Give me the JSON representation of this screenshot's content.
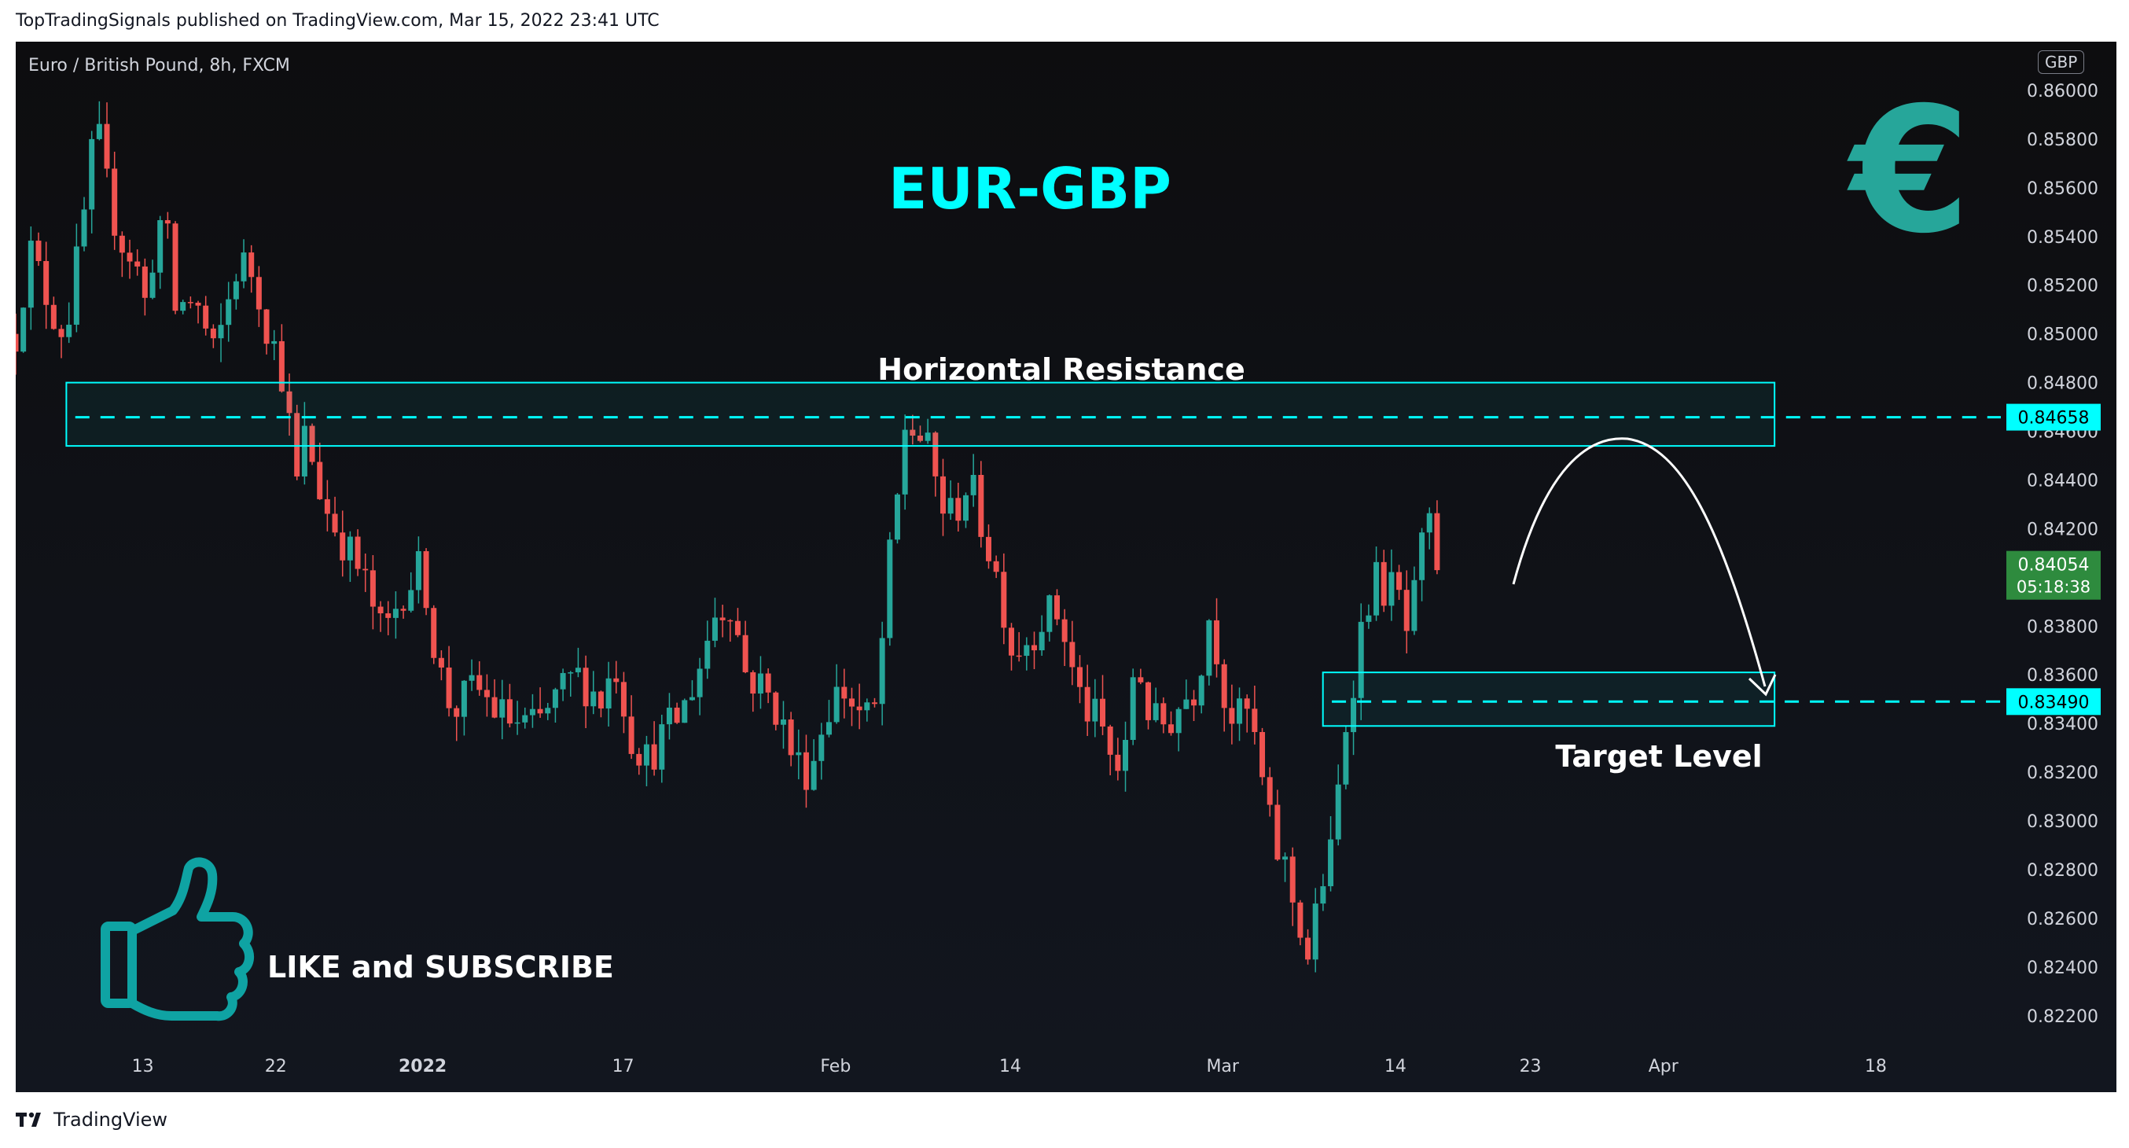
{
  "header": {
    "published_text": "TopTradingSignals published on TradingView.com, Mar 15, 2022 23:41 UTC"
  },
  "chart_header": {
    "symbol_title": "Euro / British Pound, 8h, FXCM",
    "currency": "GBP"
  },
  "footer": {
    "brand": "TradingView"
  },
  "colors": {
    "bg": "#0d0d0f",
    "up": "#26a69a",
    "down": "#ef5350",
    "accent": "#00ffff",
    "text": "#d1d4dc",
    "price_badge": "#26a69a"
  },
  "chart_data": {
    "type": "candlestick",
    "title": "EUR-GBP",
    "ylim": [
      0.8208,
      0.862
    ],
    "y_ticks": [
      0.86,
      0.858,
      0.856,
      0.854,
      0.852,
      0.85,
      0.848,
      0.846,
      0.844,
      0.842,
      0.838,
      0.836,
      0.834,
      0.832,
      0.83,
      0.828,
      0.826,
      0.824,
      0.822
    ],
    "x_ticks": [
      {
        "label": "13",
        "pos": 0.064
      },
      {
        "label": "22",
        "pos": 0.131
      },
      {
        "label": "2022",
        "pos": 0.205
      },
      {
        "label": "17",
        "pos": 0.306
      },
      {
        "label": "Feb",
        "pos": 0.413
      },
      {
        "label": "14",
        "pos": 0.501
      },
      {
        "label": "Mar",
        "pos": 0.608
      },
      {
        "label": "14",
        "pos": 0.695
      },
      {
        "label": "23",
        "pos": 0.763
      },
      {
        "label": "Apr",
        "pos": 0.83
      },
      {
        "label": "18",
        "pos": 0.937
      }
    ],
    "price_path": [
      [
        0,
        0.85
      ],
      [
        0.007,
        0.8535
      ],
      [
        0.018,
        0.851
      ],
      [
        0.025,
        0.85
      ],
      [
        0.033,
        0.854
      ],
      [
        0.038,
        0.857
      ],
      [
        0.04,
        0.8588
      ],
      [
        0.046,
        0.856
      ],
      [
        0.052,
        0.854
      ],
      [
        0.06,
        0.853
      ],
      [
        0.066,
        0.851
      ],
      [
        0.07,
        0.854
      ],
      [
        0.075,
        0.855
      ],
      [
        0.08,
        0.851
      ],
      [
        0.09,
        0.8515
      ],
      [
        0.1,
        0.849
      ],
      [
        0.106,
        0.851
      ],
      [
        0.112,
        0.853
      ],
      [
        0.12,
        0.8525
      ],
      [
        0.126,
        0.8505
      ],
      [
        0.132,
        0.849
      ],
      [
        0.137,
        0.8475
      ],
      [
        0.14,
        0.843
      ],
      [
        0.146,
        0.846
      ],
      [
        0.155,
        0.843
      ],
      [
        0.165,
        0.8415
      ],
      [
        0.175,
        0.84
      ],
      [
        0.185,
        0.8375
      ],
      [
        0.195,
        0.8395
      ],
      [
        0.205,
        0.8405
      ],
      [
        0.212,
        0.8365
      ],
      [
        0.22,
        0.8345
      ],
      [
        0.232,
        0.8355
      ],
      [
        0.242,
        0.8345
      ],
      [
        0.252,
        0.834
      ],
      [
        0.262,
        0.8338
      ],
      [
        0.272,
        0.835
      ],
      [
        0.282,
        0.836
      ],
      [
        0.295,
        0.835
      ],
      [
        0.302,
        0.8365
      ],
      [
        0.31,
        0.8335
      ],
      [
        0.318,
        0.8325
      ],
      [
        0.326,
        0.8335
      ],
      [
        0.336,
        0.8345
      ],
      [
        0.345,
        0.8365
      ],
      [
        0.352,
        0.8385
      ],
      [
        0.36,
        0.839
      ],
      [
        0.368,
        0.836
      ],
      [
        0.376,
        0.8355
      ],
      [
        0.384,
        0.8345
      ],
      [
        0.392,
        0.8325
      ],
      [
        0.4,
        0.832
      ],
      [
        0.408,
        0.8345
      ],
      [
        0.416,
        0.8355
      ],
      [
        0.424,
        0.8345
      ],
      [
        0.432,
        0.834
      ],
      [
        0.436,
        0.837
      ],
      [
        0.44,
        0.8405
      ],
      [
        0.444,
        0.843
      ],
      [
        0.448,
        0.8462
      ],
      [
        0.453,
        0.846
      ],
      [
        0.458,
        0.8455
      ],
      [
        0.462,
        0.8445
      ],
      [
        0.466,
        0.843
      ],
      [
        0.472,
        0.8425
      ],
      [
        0.48,
        0.844
      ],
      [
        0.488,
        0.8418
      ],
      [
        0.496,
        0.8395
      ],
      [
        0.502,
        0.837
      ],
      [
        0.51,
        0.8375
      ],
      [
        0.518,
        0.8385
      ],
      [
        0.526,
        0.8385
      ],
      [
        0.534,
        0.8355
      ],
      [
        0.54,
        0.8345
      ],
      [
        0.546,
        0.834
      ],
      [
        0.552,
        0.8325
      ],
      [
        0.558,
        0.8318
      ],
      [
        0.564,
        0.837
      ],
      [
        0.572,
        0.834
      ],
      [
        0.58,
        0.834
      ],
      [
        0.588,
        0.835
      ],
      [
        0.594,
        0.8355
      ],
      [
        0.598,
        0.837
      ],
      [
        0.602,
        0.8388
      ],
      [
        0.608,
        0.8355
      ],
      [
        0.614,
        0.834
      ],
      [
        0.62,
        0.8345
      ],
      [
        0.625,
        0.833
      ],
      [
        0.63,
        0.8305
      ],
      [
        0.634,
        0.829
      ],
      [
        0.64,
        0.828
      ],
      [
        0.644,
        0.8265
      ],
      [
        0.648,
        0.8255
      ],
      [
        0.652,
        0.824
      ],
      [
        0.656,
        0.827
      ],
      [
        0.66,
        0.828
      ],
      [
        0.664,
        0.829
      ],
      [
        0.667,
        0.832
      ],
      [
        0.67,
        0.834
      ],
      [
        0.674,
        0.836
      ],
      [
        0.678,
        0.838
      ],
      [
        0.684,
        0.84
      ],
      [
        0.69,
        0.8395
      ],
      [
        0.696,
        0.8395
      ],
      [
        0.7,
        0.8375
      ],
      [
        0.704,
        0.8388
      ],
      [
        0.708,
        0.841
      ],
      [
        0.712,
        0.842
      ],
      [
        0.716,
        0.8405
      ]
    ],
    "resistance_level": 0.84658,
    "resistance_zone": [
      0.8454,
      0.848
    ],
    "target_level": 0.8349,
    "target_zone": [
      0.8339,
      0.8361
    ],
    "current_price": 0.84054,
    "current_countdown": "05:18:38",
    "annotations": {
      "title": "EUR-GBP",
      "resistance_label": "Horizontal Resistance",
      "target_label": "Target Level",
      "cta": "LIKE and SUBSCRIBE",
      "resistance_price": "0.84658",
      "target_price": "0.83490",
      "current_price_label": "0.84054",
      "euro_symbol": "€"
    },
    "icons": [
      "euro-icon",
      "thumbs-up-icon"
    ]
  }
}
